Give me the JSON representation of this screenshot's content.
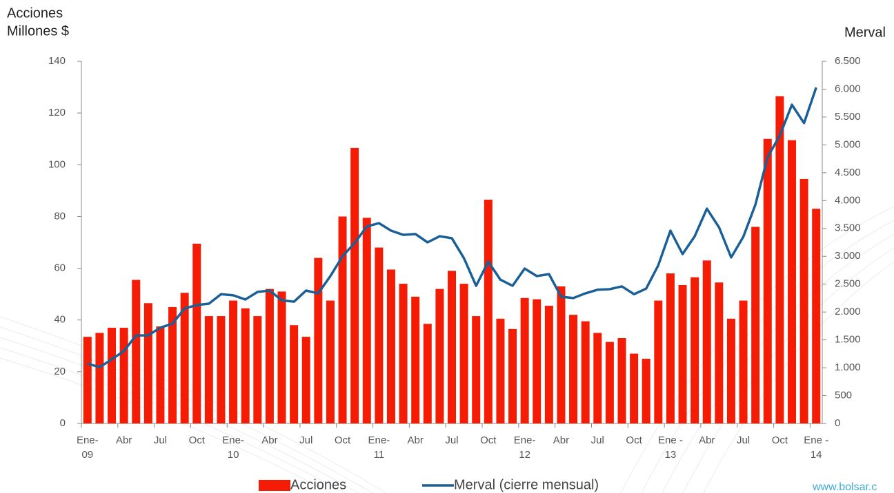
{
  "chart_data": {
    "type": "bar_line",
    "ylabel": [
      "Acciones",
      "Millones $"
    ],
    "y2label": "Merval",
    "watermark": "www.bolsar.c",
    "categories": [
      "Ene-\n09",
      null,
      null,
      "Abr",
      null,
      null,
      "Jul",
      null,
      null,
      "Oct",
      null,
      null,
      "Ene-\n10",
      null,
      null,
      "Abr",
      null,
      null,
      "Jul",
      null,
      null,
      "Oct",
      null,
      null,
      "Ene-\n11",
      null,
      null,
      "Abr",
      null,
      null,
      "Jul",
      null,
      null,
      "Oct",
      null,
      null,
      "Ene-\n12",
      null,
      null,
      "Abr",
      null,
      null,
      "Jul",
      null,
      null,
      "Oct",
      null,
      null,
      "Ene -\n13",
      null,
      null,
      "Abr",
      null,
      null,
      "Jul",
      null,
      null,
      "Oct",
      null,
      null,
      "Ene -\n14"
    ],
    "series": [
      {
        "name": "Acciones",
        "type": "bar",
        "color": "#f41c05",
        "values": [
          33.5,
          35,
          37,
          37,
          55.5,
          46.5,
          37.5,
          45,
          50.5,
          69.5,
          41.5,
          41.5,
          47.5,
          44.5,
          41.5,
          52,
          51,
          38,
          33.5,
          64,
          47.5,
          80,
          106.5,
          79.5,
          68,
          59.5,
          54,
          49,
          38.5,
          52,
          59,
          54,
          41.5,
          86.5,
          40.5,
          36.5,
          48.5,
          48,
          45.5,
          53,
          42,
          39.5,
          35,
          31.5,
          33,
          27,
          25,
          47.5,
          58,
          53.5,
          56.5,
          63,
          54.5,
          40.5,
          47.5,
          76,
          110,
          126.5,
          109.5,
          94.5,
          83
        ]
      },
      {
        "name": "Merval (cierre mensual)",
        "type": "line",
        "axis": "y2",
        "color": "#1a5f96",
        "values": [
          1075,
          1010,
          1150,
          1300,
          1580,
          1580,
          1720,
          1790,
          2065,
          2125,
          2150,
          2320,
          2300,
          2225,
          2360,
          2385,
          2210,
          2185,
          2385,
          2335,
          2645,
          3000,
          3240,
          3535,
          3595,
          3460,
          3385,
          3400,
          3250,
          3360,
          3325,
          2965,
          2470,
          2905,
          2580,
          2470,
          2780,
          2645,
          2680,
          2275,
          2250,
          2335,
          2400,
          2410,
          2460,
          2320,
          2420,
          2840,
          3460,
          3040,
          3360,
          3855,
          3520,
          2980,
          3350,
          3930,
          4780,
          5165,
          5720,
          5390,
          6030
        ]
      }
    ],
    "ylim": [
      0,
      140
    ],
    "yticks": [
      0,
      20,
      40,
      60,
      80,
      100,
      120,
      140
    ],
    "y2lim": [
      0,
      6500
    ],
    "y2ticks": [
      0,
      500,
      {
        "value": 1000,
        "label": "1.000"
      },
      {
        "value": 1500,
        "label": "1.500"
      },
      {
        "value": 2000,
        "label": "2.000"
      },
      {
        "value": 2500,
        "label": "2.500"
      },
      {
        "value": 3000,
        "label": "3.000"
      },
      {
        "value": 3500,
        "label": "3.500"
      },
      {
        "value": 4000,
        "label": "4.000"
      },
      {
        "value": 4500,
        "label": "4.500"
      },
      {
        "value": 5000,
        "label": "5.000"
      },
      {
        "value": 5500,
        "label": "5.500"
      },
      {
        "value": 6000,
        "label": "6.000"
      },
      {
        "value": 6500,
        "label": "6.500"
      }
    ],
    "legend": "bottom"
  }
}
